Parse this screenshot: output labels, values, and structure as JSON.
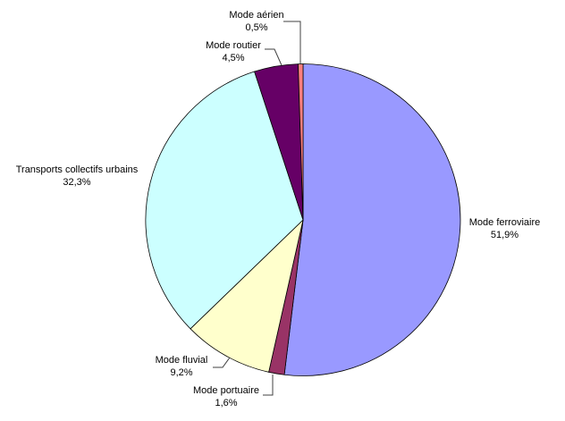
{
  "chart_data": {
    "type": "pie",
    "title": "",
    "value_unit": "%",
    "decimal_separator": ",",
    "start_angle_deg": 0,
    "direction": "clockwise",
    "background_color": "#FFFFFF",
    "outline_color": "#000000",
    "leader_line_color": "#404040",
    "legend_position": "none",
    "slices": [
      {
        "label": "Mode ferroviaire",
        "value": 51.9,
        "display": "51,9%",
        "color": "#9999FF"
      },
      {
        "label": "Mode portuaire",
        "value": 1.6,
        "display": "1,6%",
        "color": "#993366"
      },
      {
        "label": "Mode fluvial",
        "value": 9.2,
        "display": "9,2%",
        "color": "#FFFFCC"
      },
      {
        "label": "Transports collectifs urbains",
        "value": 32.3,
        "display": "32,3%",
        "color": "#CCFFFF"
      },
      {
        "label": "Mode routier",
        "value": 4.5,
        "display": "4,5%",
        "color": "#660066"
      },
      {
        "label": "Mode aérien",
        "value": 0.5,
        "display": "0,5%",
        "color": "#FF8080"
      }
    ]
  }
}
